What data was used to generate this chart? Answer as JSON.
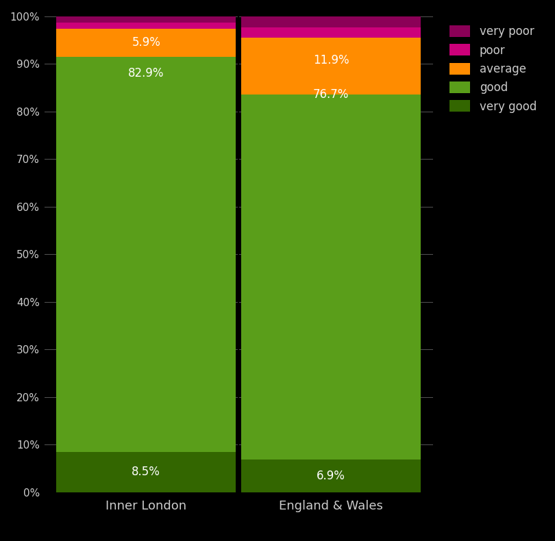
{
  "categories": [
    "Inner London",
    "England & Wales"
  ],
  "segments": [
    {
      "label": "very good",
      "color": "#336600",
      "values": [
        8.5,
        6.9
      ]
    },
    {
      "label": "good",
      "color": "#5a9e1a",
      "values": [
        82.9,
        76.7
      ]
    },
    {
      "label": "average",
      "color": "#ff8c00",
      "values": [
        5.9,
        11.9
      ]
    },
    {
      "label": "poor",
      "color": "#cc007a",
      "values": [
        1.4,
        2.2
      ]
    },
    {
      "label": "very poor",
      "color": "#8b0057",
      "values": [
        1.3,
        2.3
      ]
    }
  ],
  "label_segments": {
    "Inner London": {
      "very good": "8.5%",
      "good": "82.9%",
      "average": "5.9%"
    },
    "England & Wales": {
      "very good": "6.9%",
      "good": "76.7%",
      "average": "11.9%"
    }
  },
  "label_y_position": {
    "Inner London": {
      "very good": 4.25,
      "good": 88.0,
      "average": 94.5
    },
    "England & Wales": {
      "very good": 3.45,
      "good": 83.5,
      "average": 90.8
    }
  },
  "background_color": "#000000",
  "text_color": "#cccccc",
  "grid_color": "#555555",
  "yticks": [
    0,
    10,
    20,
    30,
    40,
    50,
    60,
    70,
    80,
    90,
    100
  ]
}
